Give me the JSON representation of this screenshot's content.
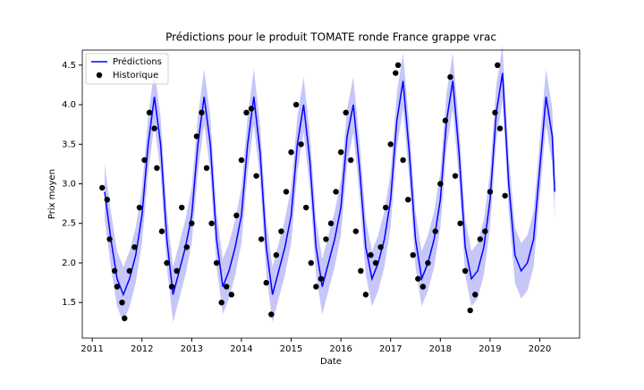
{
  "chart_data": {
    "type": "line",
    "title": "Prédictions pour le produit TOMATE ronde France grappe vrac",
    "x_label": "Date",
    "y_label": "Prix moyen",
    "xlim": [
      2010.8,
      2020.8
    ],
    "ylim": [
      1.05,
      4.69
    ],
    "xticks": [
      2011,
      2012,
      2013,
      2014,
      2015,
      2016,
      2017,
      2018,
      2019,
      2020
    ],
    "yticks": [
      1.5,
      {
        "value": 2,
        "label": "2.0"
      },
      2.5,
      {
        "value": 3,
        "label": "3.0"
      },
      3.5,
      {
        "value": 4,
        "label": "4.0"
      },
      4.5
    ],
    "legend": "upper left",
    "band_color": "#b3b3f7",
    "x": [
      2011.25,
      2011.375,
      2011.5,
      2011.625,
      2011.75,
      2011.875,
      2012,
      2012.125,
      2012.25,
      2012.375,
      2012.5,
      2012.625,
      2012.75,
      2012.875,
      2013,
      2013.125,
      2013.25,
      2013.375,
      2013.5,
      2013.625,
      2013.75,
      2013.875,
      2014,
      2014.125,
      2014.25,
      2014.375,
      2014.5,
      2014.625,
      2014.75,
      2014.875,
      2015,
      2015.125,
      2015.25,
      2015.375,
      2015.5,
      2015.625,
      2015.75,
      2015.875,
      2016,
      2016.125,
      2016.25,
      2016.375,
      2016.5,
      2016.625,
      2016.75,
      2016.875,
      2017,
      2017.125,
      2017.25,
      2017.375,
      2017.5,
      2017.625,
      2017.75,
      2017.875,
      2018,
      2018.125,
      2018.25,
      2018.375,
      2018.5,
      2018.625,
      2018.75,
      2018.875,
      2019,
      2019.125,
      2019.25,
      2019.375,
      2019.5,
      2019.625,
      2019.75,
      2019.875,
      2020,
      2020.125,
      2020.25,
      2020.3
    ],
    "series": [
      {
        "name": "Prédictions",
        "color": "#0000ff",
        "values": [
          2.9,
          2.3,
          1.8,
          1.6,
          1.8,
          2.1,
          2.6,
          3.5,
          4.1,
          3.5,
          2.3,
          1.6,
          1.9,
          2.2,
          2.6,
          3.5,
          4.1,
          3.5,
          2.3,
          1.7,
          1.9,
          2.2,
          2.6,
          3.5,
          4.1,
          3.4,
          2.2,
          1.6,
          1.9,
          2.2,
          2.6,
          3.5,
          4.0,
          3.3,
          2.2,
          1.7,
          2.0,
          2.3,
          2.7,
          3.6,
          4.0,
          3.2,
          2.2,
          1.8,
          2.0,
          2.3,
          2.8,
          3.8,
          4.3,
          3.4,
          2.3,
          1.8,
          2.0,
          2.3,
          2.8,
          3.8,
          4.3,
          3.4,
          2.2,
          1.8,
          1.9,
          2.2,
          2.8,
          3.9,
          4.4,
          3.0,
          2.1,
          1.9,
          2.0,
          2.3,
          3.2,
          4.1,
          3.6,
          2.9
        ],
        "lower": [
          2.55,
          1.95,
          1.45,
          1.25,
          1.45,
          1.75,
          2.25,
          3.15,
          3.75,
          3.15,
          1.95,
          1.25,
          1.55,
          1.85,
          2.25,
          3.15,
          3.75,
          3.15,
          1.95,
          1.35,
          1.55,
          1.85,
          2.25,
          3.15,
          3.75,
          3.05,
          1.85,
          1.25,
          1.55,
          1.85,
          2.25,
          3.15,
          3.65,
          2.95,
          1.85,
          1.35,
          1.65,
          1.95,
          2.35,
          3.25,
          3.65,
          2.85,
          1.85,
          1.45,
          1.65,
          1.95,
          2.45,
          3.45,
          3.95,
          3.05,
          1.95,
          1.45,
          1.65,
          1.95,
          2.45,
          3.45,
          3.95,
          3.05,
          1.85,
          1.45,
          1.55,
          1.85,
          2.45,
          3.55,
          4.05,
          2.65,
          1.75,
          1.55,
          1.65,
          1.95,
          2.85,
          3.75,
          3.25,
          2.55
        ],
        "upper": [
          3.25,
          2.65,
          2.15,
          1.95,
          2.15,
          2.45,
          2.95,
          3.85,
          4.45,
          3.85,
          2.65,
          1.95,
          2.25,
          2.55,
          2.95,
          3.85,
          4.45,
          3.85,
          2.65,
          2.05,
          2.25,
          2.55,
          2.95,
          3.85,
          4.45,
          3.75,
          2.55,
          1.95,
          2.25,
          2.55,
          2.95,
          3.85,
          4.35,
          3.65,
          2.55,
          2.05,
          2.35,
          2.65,
          3.05,
          3.95,
          4.35,
          3.55,
          2.55,
          2.15,
          2.35,
          2.65,
          3.15,
          4.15,
          4.65,
          3.75,
          2.65,
          2.15,
          2.35,
          2.65,
          3.15,
          4.15,
          4.65,
          3.75,
          2.55,
          2.15,
          2.25,
          2.55,
          3.15,
          4.25,
          4.75,
          3.35,
          2.45,
          2.25,
          2.35,
          2.65,
          3.55,
          4.45,
          3.95,
          3.25
        ]
      }
    ],
    "history": {
      "name": "Historique",
      "color": "#000000",
      "x": [
        2011.2,
        2011.3,
        2011.35,
        2011.45,
        2011.5,
        2011.6,
        2011.65,
        2011.75,
        2011.85,
        2011.95,
        2012.05,
        2012.15,
        2012.25,
        2012.3,
        2012.4,
        2012.5,
        2012.6,
        2012.7,
        2012.8,
        2012.9,
        2013.0,
        2013.1,
        2013.2,
        2013.3,
        2013.4,
        2013.5,
        2013.6,
        2013.7,
        2013.8,
        2013.9,
        2014.0,
        2014.1,
        2014.2,
        2014.3,
        2014.4,
        2014.5,
        2014.6,
        2014.7,
        2014.8,
        2014.9,
        2015.0,
        2015.1,
        2015.2,
        2015.3,
        2015.4,
        2015.5,
        2015.6,
        2015.7,
        2015.8,
        2015.9,
        2016.0,
        2016.1,
        2016.2,
        2016.3,
        2016.4,
        2016.5,
        2016.6,
        2016.7,
        2016.8,
        2016.9,
        2017.0,
        2017.1,
        2017.15,
        2017.25,
        2017.35,
        2017.45,
        2017.55,
        2017.65,
        2017.75,
        2017.9,
        2018.0,
        2018.1,
        2018.2,
        2018.3,
        2018.4,
        2018.5,
        2018.6,
        2018.7,
        2018.8,
        2018.9,
        2019.0,
        2019.1,
        2019.15,
        2019.2,
        2019.3
      ],
      "values": [
        2.95,
        2.8,
        2.3,
        1.9,
        1.7,
        1.5,
        1.3,
        1.9,
        2.2,
        2.7,
        3.3,
        3.9,
        3.7,
        3.2,
        2.4,
        2.0,
        1.7,
        1.9,
        2.7,
        2.2,
        2.5,
        3.6,
        3.9,
        3.2,
        2.5,
        2.0,
        1.5,
        1.7,
        1.6,
        2.6,
        3.3,
        3.9,
        3.95,
        3.1,
        2.3,
        1.75,
        1.35,
        2.1,
        2.4,
        2.9,
        3.4,
        4.0,
        3.5,
        2.7,
        2.0,
        1.7,
        1.8,
        2.3,
        2.5,
        2.9,
        3.4,
        3.9,
        3.3,
        2.4,
        1.9,
        1.6,
        2.1,
        2.0,
        2.2,
        2.7,
        3.5,
        4.4,
        4.5,
        3.3,
        2.8,
        2.1,
        1.8,
        1.7,
        2.0,
        2.4,
        3.0,
        3.8,
        4.35,
        3.1,
        2.5,
        1.9,
        1.4,
        1.6,
        2.3,
        2.4,
        2.9,
        3.9,
        4.5,
        3.7,
        2.85
      ]
    }
  }
}
